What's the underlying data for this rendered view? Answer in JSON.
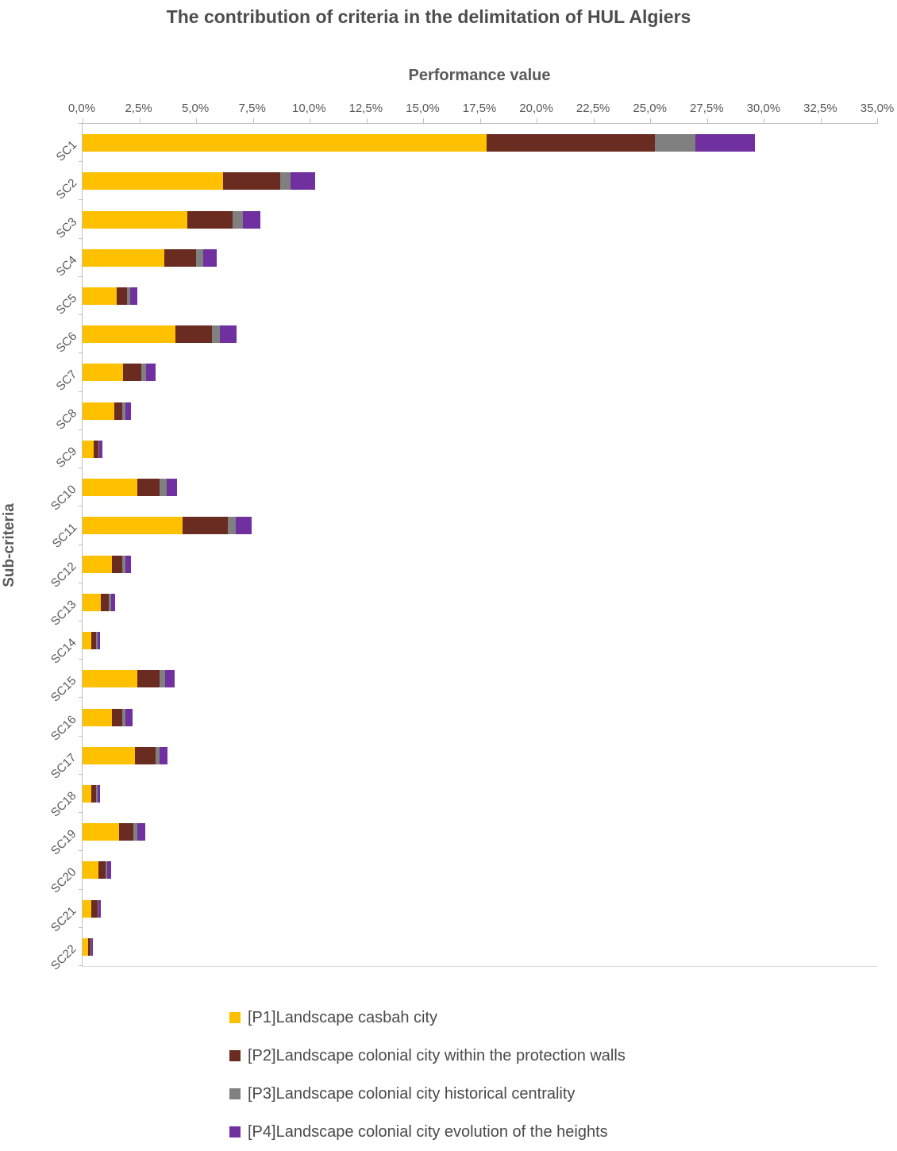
{
  "chart": {
    "title": "The contribution of criteria in the delimitation of HUL Algiers",
    "xlabel": "Performance value",
    "ylabel": "Sub-criteria"
  },
  "chart_data": {
    "type": "bar",
    "orientation": "horizontal",
    "stacked": true,
    "title": "The contribution of criteria in the delimitation of HUL Algiers",
    "xlabel": "Performance value",
    "ylabel": "Sub-criteria",
    "xlim": [
      0,
      35
    ],
    "grid": false,
    "legend_position": "bottom",
    "tick_labels": [
      "0,0%",
      "2,5%",
      "5,0%",
      "7,5%",
      "10,0%",
      "12,5%",
      "15,0%",
      "17,5%",
      "20,0%",
      "22,5%",
      "25,0%",
      "27,5%",
      "30,0%",
      "32,5%",
      "35,0%"
    ],
    "categories": [
      "SC1",
      "SC2",
      "SC3",
      "SC4",
      "SC5",
      "SC6",
      "SC7",
      "SC8",
      "SC9",
      "SC10",
      "SC11",
      "SC12",
      "SC13",
      "SC14",
      "SC15",
      "SC16",
      "SC17",
      "SC18",
      "SC19",
      "SC20",
      "SC21",
      "SC22"
    ],
    "series": [
      {
        "id": "p1",
        "name": "[P1]Landscape casbah city",
        "color": "#FFC000",
        "values": [
          17.8,
          6.2,
          4.6,
          3.6,
          1.5,
          4.1,
          1.8,
          1.4,
          0.5,
          2.4,
          4.4,
          1.3,
          0.8,
          0.4,
          2.4,
          1.3,
          2.3,
          0.4,
          1.6,
          0.7,
          0.4,
          0.25
        ]
      },
      {
        "id": "p2",
        "name": "[P2]Landscape colonial city within the protection walls",
        "color": "#6A2C20",
        "values": [
          7.4,
          2.5,
          2.0,
          1.4,
          0.45,
          1.6,
          0.8,
          0.35,
          0.2,
          1.0,
          2.0,
          0.45,
          0.35,
          0.2,
          1.0,
          0.45,
          0.9,
          0.2,
          0.65,
          0.3,
          0.25,
          0.1
        ]
      },
      {
        "id": "p3",
        "name": "[P3]Landscape colonial city historical centrality",
        "color": "#808080",
        "values": [
          1.8,
          0.45,
          0.45,
          0.3,
          0.15,
          0.35,
          0.2,
          0.15,
          0.05,
          0.3,
          0.35,
          0.15,
          0.1,
          0.05,
          0.25,
          0.15,
          0.2,
          0.05,
          0.15,
          0.1,
          0.05,
          0.03
        ]
      },
      {
        "id": "p4",
        "name": "[P4]Landscape colonial city evolution of the  heights",
        "color": "#7030A0",
        "values": [
          2.6,
          1.1,
          0.8,
          0.6,
          0.3,
          0.75,
          0.4,
          0.25,
          0.12,
          0.45,
          0.7,
          0.25,
          0.2,
          0.12,
          0.4,
          0.3,
          0.35,
          0.12,
          0.35,
          0.15,
          0.12,
          0.07
        ]
      }
    ]
  }
}
